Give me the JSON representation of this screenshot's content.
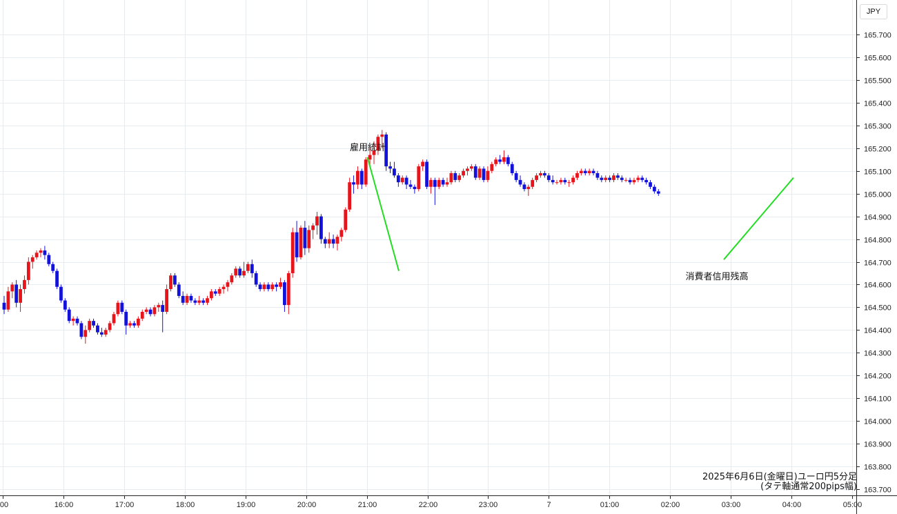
{
  "chart_data": {
    "type": "candlestick",
    "currency_label": "JPY",
    "caption_line1": "2025年6月6日(金曜日)ユーロ円5分足",
    "caption_line2": "(タテ軸通常200pips幅)",
    "ylim": [
      163.68,
      165.76
    ],
    "y_ticks": [
      "165.700",
      "165.600",
      "165.500",
      "165.400",
      "165.300",
      "165.200",
      "165.100",
      "165.000",
      "164.900",
      "164.800",
      "164.700",
      "164.600",
      "164.500",
      "164.400",
      "164.300",
      "164.200",
      "164.100",
      "164.000",
      "163.900",
      "163.800",
      "163.700"
    ],
    "x_ticks": [
      ":00",
      "16:00",
      "17:00",
      "18:00",
      "19:00",
      "20:00",
      "21:00",
      "22:00",
      "23:00",
      "7",
      "01:00",
      "02:00",
      "03:00",
      "04:00",
      "05:00"
    ],
    "grid": true,
    "colors": {
      "up": "#e8141c",
      "down": "#1212d8",
      "annotation_line": "#22dd22",
      "grid": "#e6ecef",
      "axis": "#222222"
    },
    "candles": [
      [
        164.52,
        164.55,
        164.47,
        164.49
      ],
      [
        164.49,
        164.59,
        164.48,
        164.57
      ],
      [
        164.57,
        164.61,
        164.54,
        164.6
      ],
      [
        164.6,
        164.62,
        164.5,
        164.52
      ],
      [
        164.52,
        164.6,
        164.48,
        164.58
      ],
      [
        164.58,
        164.64,
        164.56,
        164.62
      ],
      [
        164.62,
        164.72,
        164.6,
        164.7
      ],
      [
        164.7,
        164.73,
        164.67,
        164.72
      ],
      [
        164.72,
        164.75,
        164.71,
        164.74
      ],
      [
        164.74,
        164.76,
        164.72,
        164.75
      ],
      [
        164.75,
        164.77,
        164.71,
        164.73
      ],
      [
        164.73,
        164.74,
        164.68,
        164.69
      ],
      [
        164.69,
        164.7,
        164.65,
        164.66
      ],
      [
        164.66,
        164.67,
        164.58,
        164.59
      ],
      [
        164.59,
        164.6,
        164.52,
        164.53
      ],
      [
        164.53,
        164.54,
        164.48,
        164.49
      ],
      [
        164.49,
        164.5,
        164.43,
        164.44
      ],
      [
        164.44,
        164.46,
        164.42,
        164.45
      ],
      [
        164.45,
        164.46,
        164.42,
        164.43
      ],
      [
        164.43,
        164.44,
        164.36,
        164.37
      ],
      [
        164.37,
        164.42,
        164.34,
        164.4
      ],
      [
        164.4,
        164.45,
        164.39,
        164.44
      ],
      [
        164.44,
        164.45,
        164.41,
        164.42
      ],
      [
        164.42,
        164.43,
        164.38,
        164.39
      ],
      [
        164.39,
        164.41,
        164.37,
        164.38
      ],
      [
        164.38,
        164.41,
        164.37,
        164.4
      ],
      [
        164.4,
        164.44,
        164.39,
        164.43
      ],
      [
        164.43,
        164.48,
        164.42,
        164.47
      ],
      [
        164.47,
        164.53,
        164.46,
        164.52
      ],
      [
        164.52,
        164.53,
        164.47,
        164.48
      ],
      [
        164.48,
        164.49,
        164.38,
        164.42
      ],
      [
        164.42,
        164.44,
        164.41,
        164.43
      ],
      [
        164.43,
        164.44,
        164.41,
        164.42
      ],
      [
        164.42,
        164.46,
        164.41,
        164.45
      ],
      [
        164.45,
        164.49,
        164.44,
        164.48
      ],
      [
        164.48,
        164.5,
        164.47,
        164.49
      ],
      [
        164.49,
        164.5,
        164.46,
        164.47
      ],
      [
        164.47,
        164.51,
        164.46,
        164.5
      ],
      [
        164.5,
        164.52,
        164.48,
        164.51
      ],
      [
        164.51,
        164.53,
        164.39,
        164.48
      ],
      [
        164.48,
        164.6,
        164.47,
        164.58
      ],
      [
        164.58,
        164.65,
        164.57,
        164.64
      ],
      [
        164.64,
        164.65,
        164.59,
        164.6
      ],
      [
        164.6,
        164.61,
        164.54,
        164.55
      ],
      [
        164.55,
        164.57,
        164.51,
        164.52
      ],
      [
        164.52,
        164.56,
        164.51,
        164.55
      ],
      [
        164.55,
        164.56,
        164.52,
        164.53
      ],
      [
        164.53,
        164.54,
        164.51,
        164.52
      ],
      [
        164.52,
        164.55,
        164.51,
        164.53
      ],
      [
        164.53,
        164.54,
        164.51,
        164.52
      ],
      [
        164.52,
        164.55,
        164.51,
        164.54
      ],
      [
        164.54,
        164.58,
        164.53,
        164.57
      ],
      [
        164.57,
        164.58,
        164.55,
        164.56
      ],
      [
        164.56,
        164.59,
        164.55,
        164.58
      ],
      [
        164.58,
        164.6,
        164.56,
        164.59
      ],
      [
        164.59,
        164.62,
        164.57,
        164.61
      ],
      [
        164.61,
        164.65,
        164.6,
        164.64
      ],
      [
        164.64,
        164.68,
        164.63,
        164.67
      ],
      [
        164.67,
        164.68,
        164.63,
        164.64
      ],
      [
        164.64,
        164.7,
        164.63,
        164.66
      ],
      [
        164.66,
        164.7,
        164.65,
        164.69
      ],
      [
        164.69,
        164.71,
        164.63,
        164.65
      ],
      [
        164.65,
        164.66,
        164.59,
        164.6
      ],
      [
        164.6,
        164.61,
        164.57,
        164.58
      ],
      [
        164.58,
        164.61,
        164.57,
        164.6
      ],
      [
        164.6,
        164.61,
        164.57,
        164.58
      ],
      [
        164.58,
        164.61,
        164.57,
        164.6
      ],
      [
        164.6,
        164.61,
        164.57,
        164.59
      ],
      [
        164.59,
        164.63,
        164.58,
        164.61
      ],
      [
        164.61,
        164.62,
        164.48,
        164.51
      ],
      [
        164.51,
        164.66,
        164.47,
        164.65
      ],
      [
        164.65,
        164.85,
        164.63,
        164.83
      ],
      [
        164.83,
        164.88,
        164.7,
        164.72
      ],
      [
        164.72,
        164.86,
        164.71,
        164.85
      ],
      [
        164.85,
        164.88,
        164.73,
        164.76
      ],
      [
        164.76,
        164.86,
        164.74,
        164.84
      ],
      [
        164.84,
        164.87,
        164.8,
        164.86
      ],
      [
        164.86,
        164.92,
        164.82,
        164.9
      ],
      [
        164.9,
        164.91,
        164.78,
        164.8
      ],
      [
        164.8,
        164.81,
        164.76,
        164.78
      ],
      [
        164.78,
        164.83,
        164.76,
        164.8
      ],
      [
        164.8,
        164.82,
        164.76,
        164.78
      ],
      [
        164.78,
        164.82,
        164.75,
        164.81
      ],
      [
        164.81,
        164.85,
        164.79,
        164.84
      ],
      [
        164.84,
        164.94,
        164.83,
        164.93
      ],
      [
        164.93,
        165.07,
        164.92,
        165.05
      ],
      [
        165.05,
        165.08,
        165.0,
        165.04
      ],
      [
        165.04,
        165.12,
        165.02,
        165.1
      ],
      [
        165.1,
        165.11,
        165.02,
        165.04
      ],
      [
        165.04,
        165.16,
        165.03,
        165.15
      ],
      [
        165.15,
        165.2,
        165.12,
        165.17
      ],
      [
        165.17,
        165.23,
        165.13,
        165.19
      ],
      [
        165.19,
        165.26,
        165.17,
        165.25
      ],
      [
        165.25,
        165.28,
        165.2,
        165.26
      ],
      [
        165.26,
        165.27,
        165.1,
        165.12
      ],
      [
        165.12,
        165.14,
        165.09,
        165.11
      ],
      [
        165.11,
        165.14,
        165.07,
        165.08
      ],
      [
        165.08,
        165.09,
        165.03,
        165.05
      ],
      [
        165.05,
        165.08,
        165.04,
        165.07
      ],
      [
        165.07,
        165.08,
        165.02,
        165.04
      ],
      [
        165.04,
        165.06,
        165.02,
        165.03
      ],
      [
        165.03,
        165.04,
        165.0,
        165.02
      ],
      [
        165.02,
        165.13,
        165.01,
        165.12
      ],
      [
        165.12,
        165.15,
        165.1,
        165.14
      ],
      [
        165.14,
        165.15,
        165.02,
        165.03
      ],
      [
        165.03,
        165.07,
        165.0,
        165.06
      ],
      [
        165.06,
        165.07,
        164.95,
        165.03
      ],
      [
        165.03,
        165.07,
        165.02,
        165.06
      ],
      [
        165.06,
        165.07,
        165.03,
        165.04
      ],
      [
        165.04,
        165.07,
        165.03,
        165.05
      ],
      [
        165.05,
        165.1,
        165.04,
        165.09
      ],
      [
        165.09,
        165.1,
        165.05,
        165.06
      ],
      [
        165.06,
        165.09,
        165.05,
        165.08
      ],
      [
        165.08,
        165.11,
        165.07,
        165.1
      ],
      [
        165.1,
        165.12,
        165.08,
        165.11
      ],
      [
        165.11,
        165.13,
        165.1,
        165.12
      ],
      [
        165.12,
        165.13,
        165.06,
        165.07
      ],
      [
        165.07,
        165.12,
        165.06,
        165.11
      ],
      [
        165.11,
        165.12,
        165.05,
        165.06
      ],
      [
        165.06,
        165.12,
        165.05,
        165.1
      ],
      [
        165.1,
        165.14,
        165.09,
        165.13
      ],
      [
        165.13,
        165.16,
        165.12,
        165.15
      ],
      [
        165.15,
        165.17,
        165.13,
        165.14
      ],
      [
        165.14,
        165.19,
        165.13,
        165.16
      ],
      [
        165.16,
        165.17,
        165.12,
        165.13
      ],
      [
        165.13,
        165.14,
        165.08,
        165.09
      ],
      [
        165.09,
        165.1,
        165.05,
        165.06
      ],
      [
        165.06,
        165.08,
        165.03,
        165.04
      ],
      [
        165.04,
        165.05,
        165.01,
        165.02
      ],
      [
        165.02,
        165.04,
        164.99,
        165.03
      ],
      [
        165.03,
        165.07,
        165.02,
        165.06
      ],
      [
        165.06,
        165.09,
        165.05,
        165.08
      ],
      [
        165.08,
        165.1,
        165.07,
        165.09
      ],
      [
        165.09,
        165.1,
        165.07,
        165.08
      ],
      [
        165.08,
        165.09,
        165.05,
        165.06
      ],
      [
        165.06,
        165.08,
        165.04,
        165.05
      ],
      [
        165.05,
        165.06,
        165.04,
        165.05
      ],
      [
        165.05,
        165.07,
        165.04,
        165.06
      ],
      [
        165.06,
        165.07,
        165.04,
        165.05
      ],
      [
        165.05,
        165.06,
        165.03,
        165.05
      ],
      [
        165.05,
        165.08,
        165.04,
        165.07
      ],
      [
        165.07,
        165.1,
        165.06,
        165.09
      ],
      [
        165.09,
        165.11,
        165.08,
        165.1
      ],
      [
        165.1,
        165.11,
        165.08,
        165.09
      ],
      [
        165.09,
        165.11,
        165.08,
        165.1
      ],
      [
        165.1,
        165.11,
        165.08,
        165.09
      ],
      [
        165.09,
        165.1,
        165.06,
        165.07
      ],
      [
        165.07,
        165.08,
        165.05,
        165.06
      ],
      [
        165.06,
        165.08,
        165.05,
        165.07
      ],
      [
        165.07,
        165.08,
        165.05,
        165.06
      ],
      [
        165.06,
        165.09,
        165.05,
        165.08
      ],
      [
        165.08,
        165.09,
        165.06,
        165.07
      ],
      [
        165.07,
        165.08,
        165.05,
        165.06
      ],
      [
        165.06,
        165.07,
        165.05,
        165.06
      ],
      [
        165.06,
        165.07,
        165.04,
        165.05
      ],
      [
        165.05,
        165.07,
        165.04,
        165.06
      ],
      [
        165.06,
        165.08,
        165.05,
        165.07
      ],
      [
        165.07,
        165.08,
        165.05,
        165.06
      ],
      [
        165.06,
        165.07,
        165.04,
        165.05
      ],
      [
        165.05,
        165.06,
        165.02,
        165.03
      ],
      [
        165.03,
        165.04,
        165.0,
        165.01
      ],
      [
        165.01,
        165.02,
        164.99,
        165.0
      ]
    ],
    "annotations": [
      {
        "text": "雇用統計",
        "line_from": [
          532.5,
          165.16
        ],
        "line_to": [
          578.0,
          164.66
        ]
      },
      {
        "text": "消費者信用残高",
        "line_from": [
          1049.0,
          164.71
        ],
        "line_to": [
          1150.0,
          165.07
        ]
      }
    ]
  }
}
